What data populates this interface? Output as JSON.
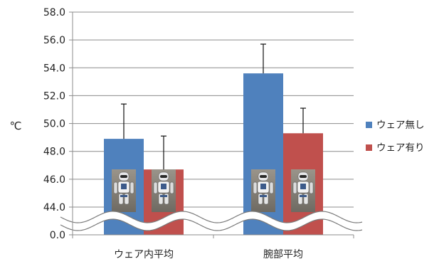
{
  "chart_data": {
    "type": "bar",
    "title": "",
    "xlabel": "",
    "ylabel": "℃",
    "categories": [
      "ウェア内平均",
      "腕部平均"
    ],
    "series": [
      {
        "name": "ウェア無し",
        "color": "#4F81BD",
        "values": [
          48.9,
          53.6
        ],
        "error": [
          2.5,
          2.1
        ]
      },
      {
        "name": "ウェア有り",
        "color": "#C0504D",
        "values": [
          46.7,
          49.3
        ],
        "error": [
          2.4,
          1.8
        ]
      }
    ],
    "ylim": [
      44,
      58
    ],
    "y_ticks": [
      "58.0",
      "56.0",
      "54.0",
      "52.0",
      "50.0",
      "48.0",
      "46.0",
      "44.0",
      "0.0"
    ],
    "axis_break": {
      "from": 0.0,
      "to": 44.0
    },
    "grid": true,
    "legend": "right",
    "bar_images": "robot-photo"
  }
}
